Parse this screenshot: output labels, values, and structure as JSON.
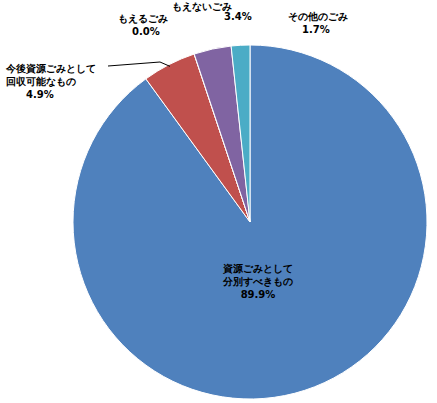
{
  "chart_data": {
    "type": "pie",
    "categories": [
      "資源ごみとして\n分別すべきもの",
      "今後資源ごみとして\n回収可能なもの",
      "もえるごみ",
      "もえないごみ",
      "その他のごみ"
    ],
    "values": [
      89.9,
      4.9,
      0.0,
      3.4,
      1.7
    ],
    "value_labels": [
      "89.9%",
      "4.9%",
      "0.0%",
      "3.4%",
      "1.7%"
    ],
    "colors": [
      "#4f81bd",
      "#c0504d",
      "#9bbb59",
      "#8064a2",
      "#4bacc6"
    ],
    "data_labels": true
  }
}
